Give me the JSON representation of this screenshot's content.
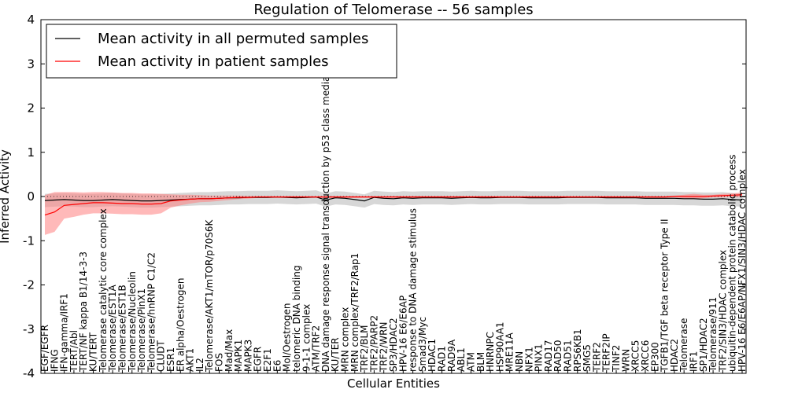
{
  "chart_data": {
    "type": "line",
    "title": "Regulation of Telomerase -- 56 samples",
    "xlabel": "Cellular Entities",
    "ylabel": "Inferred Activity",
    "ylim": [
      -4,
      4
    ],
    "yticks": [
      -4,
      -3,
      -2,
      -1,
      0,
      1,
      2,
      3,
      4
    ],
    "legend_position": "top-left",
    "colors": {
      "permuted": "#000000",
      "patient": "#ff0000",
      "patient_band": "#ff8080",
      "permuted_band": "#b0b0b0"
    },
    "categories": [
      "EGF/EGFR",
      "IFNG",
      "IFN-gamma/IRF1",
      "TERT/Abl",
      "TERT/NF kappa B1/14-3-3",
      "KU/TERT",
      "Telomerase catalytic core complex",
      "Telomerase/EST1A",
      "Telomerase/EST1B",
      "Telomerase/Nucleolin",
      "Telomerase/PinX1",
      "Telomerase/hnRNP C1/C2",
      "CLUDT",
      "ESR1",
      "ER alpha/Oestrogen",
      "AKT1",
      "IL2",
      "Telomerase/AKT1/mTOR/p70S6K",
      "FOS",
      "Mad/Max",
      "MAPK1",
      "MAPK3",
      "EGFR",
      "E2F1",
      "E6",
      "Mol/Oestrogen",
      "telomeric DNA binding",
      "9-1-1 complex",
      "ATM/TRF2",
      "DNA damage response signal transduction by p53 class mediator",
      "KU/TER",
      "MRN complex",
      "MRN complex/TRF2/Rap1",
      "TRF2/BLM",
      "TRF2/PARP2",
      "TRF2/WRN",
      "SP3/HDAC2",
      "HPV-16 E6/E6AP",
      "response to DNA damage stimulus",
      "Smad3/Myc",
      "HDAC1",
      "RAD1",
      "RAD9A",
      "ABL1",
      "ATM",
      "BLM",
      "HNRNPC",
      "HSP90AA1",
      "MRE11A",
      "NBN",
      "NFX1",
      "PINX1",
      "RAD17",
      "RAD50",
      "RAD51",
      "RPS6KB1",
      "SMG5",
      "TERF2",
      "TERF2IP",
      "TINF2",
      "WRN",
      "XRCC5",
      "XRCC6",
      "EP300",
      "TGFB1/TGF beta receptor Type II",
      "HDAC2",
      "Telomerase",
      "IRF1",
      "SP1/HDAC2",
      "Telomerase/911",
      "TRF2/SIN3/HDAC complex",
      "ubiquitin-dependent protein catabolic process",
      "HPV-16 E6/E6AP/NFX1/SIN3/HDAC complex"
    ],
    "series": [
      {
        "name": "Mean activity in all permuted samples",
        "values": [
          -0.09,
          -0.08,
          -0.07,
          -0.08,
          -0.09,
          -0.09,
          -0.08,
          -0.07,
          -0.08,
          -0.09,
          -0.1,
          -0.1,
          -0.09,
          -0.08,
          -0.07,
          -0.06,
          -0.05,
          -0.05,
          -0.04,
          -0.03,
          -0.03,
          -0.02,
          -0.02,
          -0.02,
          -0.01,
          -0.02,
          -0.03,
          -0.02,
          -0.01,
          -0.08,
          -0.03,
          -0.04,
          -0.07,
          -0.1,
          -0.02,
          -0.04,
          -0.05,
          -0.03,
          -0.04,
          -0.03,
          -0.03,
          -0.03,
          -0.04,
          -0.03,
          -0.02,
          -0.03,
          -0.03,
          -0.02,
          -0.02,
          -0.02,
          -0.03,
          -0.03,
          -0.03,
          -0.03,
          -0.02,
          -0.02,
          -0.02,
          -0.02,
          -0.03,
          -0.03,
          -0.03,
          -0.03,
          -0.04,
          -0.04,
          -0.04,
          -0.04,
          -0.05,
          -0.05,
          -0.06,
          -0.06,
          -0.05,
          -0.07,
          -0.08
        ]
      },
      {
        "name": "Mean activity in patient samples",
        "values": [
          -0.42,
          -0.35,
          -0.2,
          -0.18,
          -0.16,
          -0.14,
          -0.14,
          -0.15,
          -0.16,
          -0.16,
          -0.17,
          -0.17,
          -0.16,
          -0.1,
          -0.08,
          -0.06,
          -0.05,
          -0.05,
          -0.04,
          -0.03,
          -0.02,
          -0.02,
          -0.01,
          -0.01,
          -0.01,
          -0.01,
          -0.01,
          -0.01,
          -0.01,
          -0.01,
          -0.01,
          -0.01,
          -0.01,
          -0.01,
          -0.01,
          -0.01,
          -0.01,
          -0.01,
          -0.01,
          -0.01,
          -0.01,
          -0.01,
          -0.01,
          -0.01,
          -0.01,
          -0.01,
          -0.01,
          -0.01,
          -0.01,
          -0.01,
          -0.01,
          -0.01,
          -0.01,
          -0.01,
          -0.01,
          -0.01,
          -0.01,
          -0.01,
          -0.01,
          -0.01,
          -0.01,
          -0.01,
          -0.01,
          -0.01,
          -0.01,
          -0.0,
          -0.0,
          0.0,
          0.0,
          0.01,
          0.02,
          0.03,
          0.04
        ]
      }
    ],
    "permuted_band": 0.15,
    "patient_band": [
      0.45,
      0.45,
      0.3,
      0.28,
      0.25,
      0.24,
      0.24,
      0.24,
      0.24,
      0.24,
      0.24,
      0.24,
      0.22,
      0.15,
      0.12,
      0.1,
      0.08,
      0.07,
      0.06,
      0.05,
      0.04,
      0.03,
      0.02,
      0.02,
      0.02,
      0.02,
      0.02,
      0.02,
      0.02,
      0.02,
      0.02,
      0.02,
      0.02,
      0.02,
      0.02,
      0.02,
      0.02,
      0.02,
      0.02,
      0.02,
      0.02,
      0.02,
      0.02,
      0.02,
      0.02,
      0.02,
      0.02,
      0.02,
      0.02,
      0.02,
      0.02,
      0.02,
      0.02,
      0.02,
      0.02,
      0.02,
      0.02,
      0.02,
      0.02,
      0.02,
      0.02,
      0.02,
      0.02,
      0.02,
      0.02,
      0.02,
      0.04,
      0.06,
      0.04,
      0.03,
      0.04,
      0.04,
      0.05
    ]
  }
}
